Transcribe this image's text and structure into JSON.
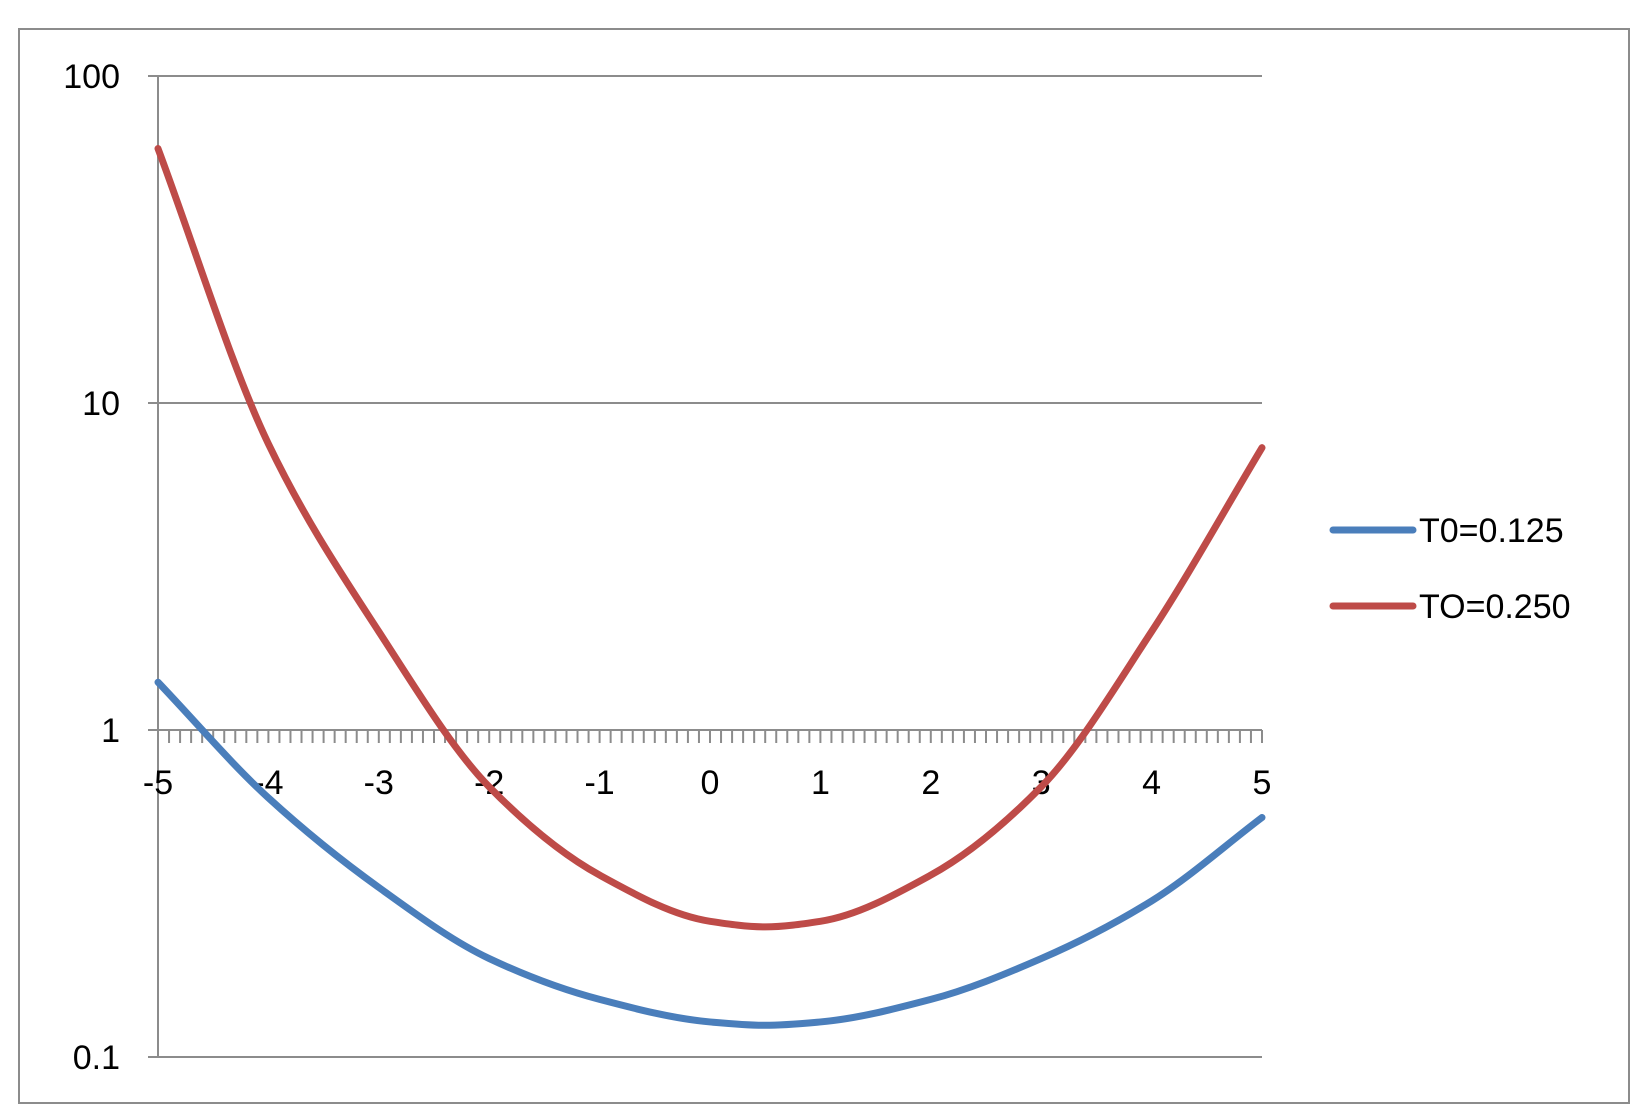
{
  "chart_data": {
    "type": "line",
    "title": "",
    "xlabel": "",
    "ylabel": "",
    "xlim": [
      -5,
      5
    ],
    "ylim": [
      0.1,
      100
    ],
    "y_scale": "log",
    "x_axis_crosses_y_at": 1,
    "x_ticks": [
      "-5",
      "-4",
      "-3",
      "-2",
      "-1",
      "0",
      "1",
      "2",
      "3",
      "4",
      "5"
    ],
    "y_ticks": [
      "0.1",
      "1",
      "10",
      "100"
    ],
    "grid": "horizontal major gridlines",
    "legend_position": "right",
    "x": [
      -5,
      -4,
      -3,
      -2,
      -1,
      0,
      0.5,
      1,
      2,
      3,
      4,
      5
    ],
    "series": [
      {
        "name": "T0=0.125",
        "color": "#4a7ebb",
        "values": [
          1.4,
          0.62,
          0.33,
          0.2,
          0.15,
          0.128,
          0.125,
          0.128,
          0.15,
          0.2,
          0.3,
          0.54
        ]
      },
      {
        "name": "TO=0.250",
        "color": "#be4b48",
        "values": [
          60,
          7.5,
          2.0,
          0.67,
          0.36,
          0.26,
          0.25,
          0.26,
          0.36,
          0.67,
          2.0,
          7.3
        ]
      }
    ]
  }
}
